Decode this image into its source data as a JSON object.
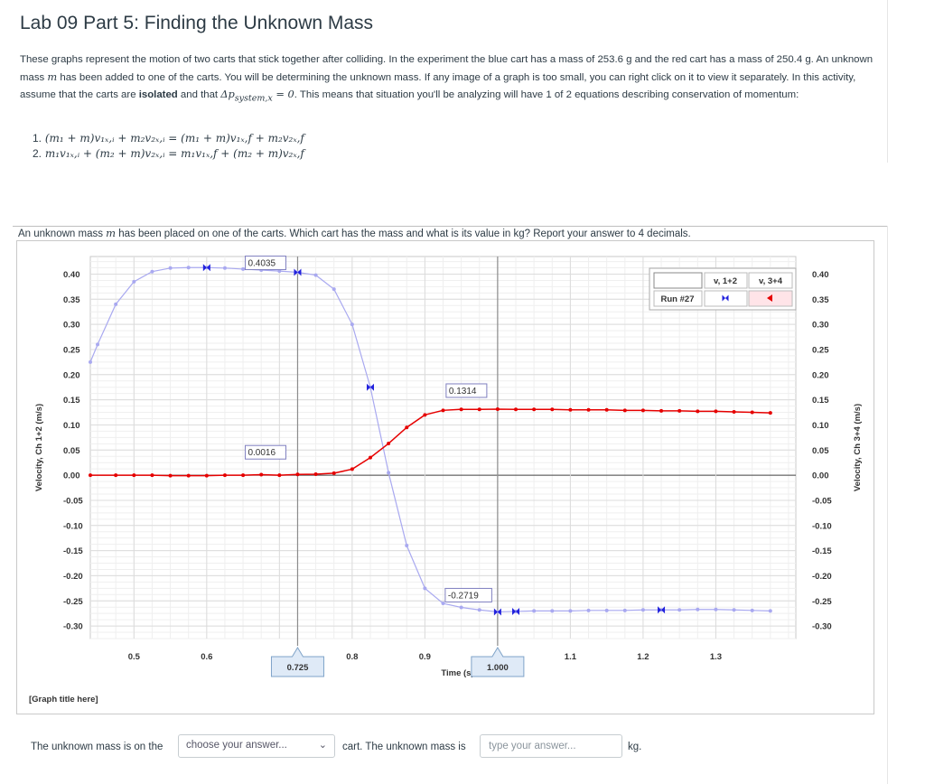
{
  "page": {
    "title": "Lab 09 Part 5: Finding the Unknown Mass",
    "intro": {
      "p1": "These graphs represent the motion of two carts that stick together after colliding. In the experiment the blue cart has a mass of 253.6 g and the red cart has a mass of 250.4 g. An unknown mass ",
      "p2": " has been added to one of the carts. You will be determining the unknown mass. If any image of a graph is too small, you can right click on it to view it separately. In this activity, assume that the carts are ",
      "bold": "isolated",
      "p3": " and that ",
      "p4": ". This means that situation you'll be analyzing will have 1 of 2 equations describing conservation of momentum:",
      "m_symbol": "m",
      "dp_expr": "Δp<sub>system,x</sub> = 0"
    },
    "equations": [
      {
        "num": "1.",
        "expr": "(m₁ + m)v₁ₓ,ᵢ + m₂v₂ₓ,ᵢ = (m₁ + m)v₁ₓ,f + m₂v₂ₓ,f"
      },
      {
        "num": "2.",
        "expr": "m₁v₁ₓ,ᵢ + (m₂ + m)v₂ₓ,ᵢ = m₁v₁ₓ,f + (m₂ + m)v₂ₓ,f"
      }
    ],
    "question": {
      "before": "An unknown mass ",
      "m": "m",
      "after": " has been placed on one of the carts. Which cart has the mass and what is its value in kg? Report your answer to 4 decimals."
    },
    "answer": {
      "prefix": "The unknown mass is on the",
      "select_value": "choose your answer...",
      "middle": "cart. The unknown mass is",
      "input_placeholder": "type your answer...",
      "suffix": "kg."
    }
  },
  "chart_data": {
    "type": "line",
    "graph_title": "[Graph title here]",
    "xlabel": "Time (s)",
    "ylabel_left": "Velocity, Ch 1+2 (m/s)",
    "ylabel_right": "Velocity, Ch 3+4 (m/s)",
    "xlim": [
      0.44,
      1.41
    ],
    "ylim": [
      -0.325,
      0.435
    ],
    "x_ticks": [
      0.5,
      0.6,
      0.7,
      0.8,
      0.9,
      1.0,
      1.1,
      1.2,
      1.3
    ],
    "x_tick_labels": [
      "0.5",
      "0.6",
      "",
      "0.8",
      "0.9",
      "",
      "1.1",
      "1.2",
      "1.3"
    ],
    "y_ticks": [
      0.4,
      0.35,
      0.3,
      0.25,
      0.2,
      0.15,
      0.1,
      0.05,
      0.0,
      -0.05,
      -0.1,
      -0.15,
      -0.2,
      -0.25,
      -0.3
    ],
    "y_tick_labels": [
      "0.40",
      "0.35",
      "0.30",
      "0.25",
      "0.20",
      "0.15",
      "0.10",
      "0.05",
      "0.00",
      "-0.05",
      "-0.10",
      "-0.15",
      "-0.20",
      "-0.25",
      "-0.30"
    ],
    "cursors": [
      {
        "x": 0.725,
        "label": "0.725"
      },
      {
        "x": 1.0,
        "label": "1.000"
      }
    ],
    "annotations": [
      {
        "text": "0.4035",
        "x": 0.725,
        "y": 0.4035,
        "series": "v, 1+2"
      },
      {
        "text": "0.0016",
        "x": 0.725,
        "y": 0.0016,
        "series": "v, 3+4"
      },
      {
        "text": "0.1314",
        "x": 1.0,
        "y": 0.1314,
        "series": "v, 3+4"
      },
      {
        "text": "-0.2719",
        "x": 1.0,
        "y": -0.2719,
        "series": "v, 1+2"
      }
    ],
    "legend": {
      "run_label": "Run #27",
      "placement": "top-right",
      "series_names": [
        "v, 1+2",
        "v, 3+4"
      ]
    },
    "colors": {
      "blue_series": "#a9a9f0",
      "blue_marker": "#2222dd",
      "red_series": "#e60000",
      "cursor": "#888888"
    },
    "series": [
      {
        "name": "v, 1+2",
        "color": "#a9a9f0",
        "x": [
          0.44,
          0.45,
          0.475,
          0.5,
          0.525,
          0.55,
          0.575,
          0.6,
          0.625,
          0.65,
          0.675,
          0.7,
          0.725,
          0.75,
          0.775,
          0.8,
          0.825,
          0.85,
          0.875,
          0.9,
          0.925,
          0.95,
          0.975,
          1.0,
          1.025,
          1.05,
          1.075,
          1.1,
          1.125,
          1.15,
          1.175,
          1.2,
          1.225,
          1.25,
          1.275,
          1.3,
          1.325,
          1.35,
          1.375
        ],
        "values": [
          0.225,
          0.26,
          0.34,
          0.385,
          0.405,
          0.412,
          0.413,
          0.413,
          0.412,
          0.41,
          0.408,
          0.406,
          0.4035,
          0.398,
          0.37,
          0.3,
          0.175,
          0.005,
          -0.14,
          -0.225,
          -0.255,
          -0.263,
          -0.268,
          -0.2719,
          -0.271,
          -0.27,
          -0.27,
          -0.27,
          -0.269,
          -0.269,
          -0.269,
          -0.268,
          -0.268,
          -0.268,
          -0.267,
          -0.267,
          -0.268,
          -0.269,
          -0.27
        ]
      },
      {
        "name": "v, 3+4",
        "color": "#e60000",
        "x": [
          0.44,
          0.475,
          0.5,
          0.525,
          0.55,
          0.575,
          0.6,
          0.625,
          0.65,
          0.675,
          0.7,
          0.725,
          0.75,
          0.775,
          0.8,
          0.825,
          0.85,
          0.875,
          0.9,
          0.925,
          0.95,
          0.975,
          1.0,
          1.025,
          1.05,
          1.075,
          1.1,
          1.125,
          1.15,
          1.175,
          1.2,
          1.225,
          1.25,
          1.275,
          1.3,
          1.325,
          1.35,
          1.375
        ],
        "values": [
          0.0,
          0.0,
          0.0,
          0.0,
          -0.001,
          -0.001,
          -0.001,
          0.0,
          0.0,
          0.001,
          0.0,
          0.0016,
          0.002,
          0.004,
          0.012,
          0.035,
          0.063,
          0.095,
          0.12,
          0.129,
          0.131,
          0.131,
          0.1314,
          0.131,
          0.131,
          0.131,
          0.13,
          0.13,
          0.13,
          0.129,
          0.129,
          0.128,
          0.128,
          0.127,
          0.127,
          0.126,
          0.125,
          0.124
        ]
      }
    ]
  }
}
